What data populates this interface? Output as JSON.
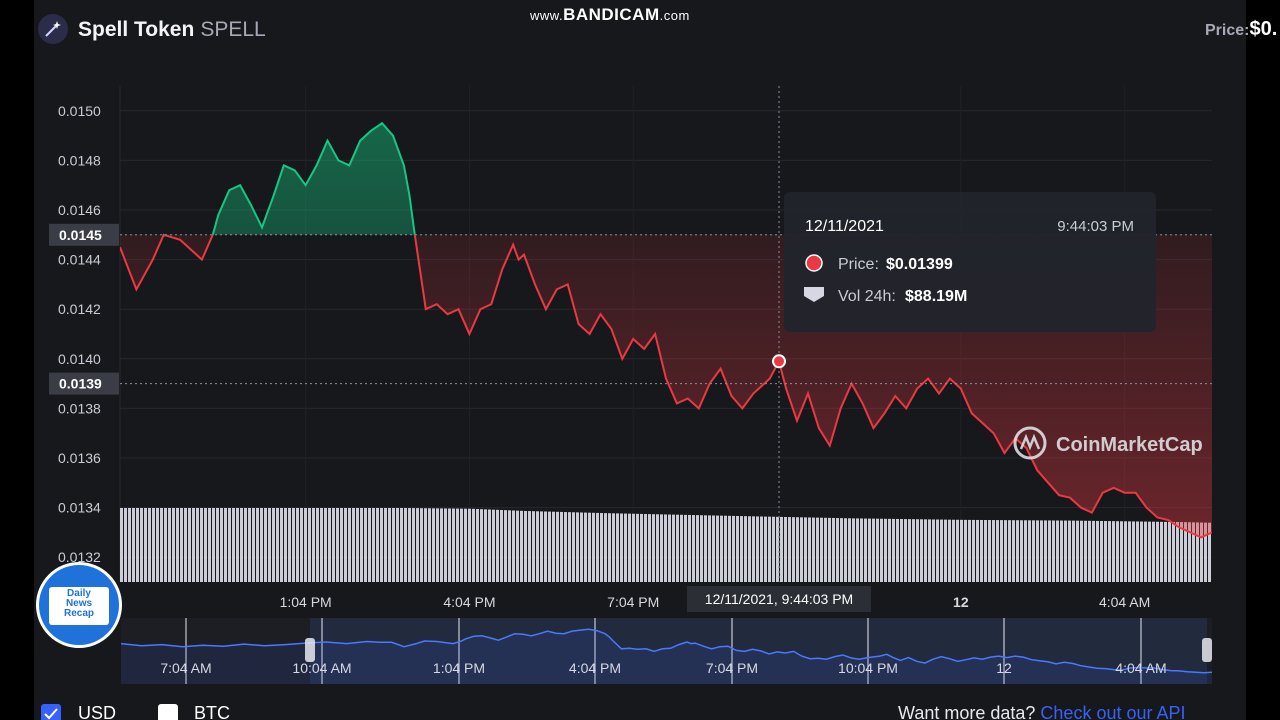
{
  "header": {
    "name": "Spell Token",
    "symbol": "SPELL",
    "price_label": "Price:",
    "price_value": "$0."
  },
  "watermark": {
    "prefix": "www.",
    "main": "BANDICAM",
    "suffix": ".com"
  },
  "tooltip": {
    "date": "12/11/2021",
    "time": "9:44:03 PM",
    "price_label": "Price:",
    "price_value": "$0.01399",
    "vol_label": "Vol 24h:",
    "vol_value": "$88.19M",
    "price_dot_color": "#ea3943"
  },
  "crosshair_x_label": "12/11/2021, 9:44:03 PM",
  "brand_watermark": "CoinMarketCap",
  "badge": {
    "line1": "Daily",
    "line2": "News",
    "line3": "Recap"
  },
  "footer": {
    "usd_label": "USD",
    "btc_label": "BTC",
    "more_text": "Want more data?",
    "api_link": "Check out our API"
  },
  "colors": {
    "up": "#16c784",
    "down": "#ea3943",
    "accent": "#3861fb",
    "background": "#17181b"
  },
  "chart_data": {
    "type": "line",
    "baseline": 0.0145,
    "ylim": [
      0.0131,
      0.0151
    ],
    "y_ticks": [
      "0.0150",
      "0.0148",
      "0.0146",
      "0.0144",
      "0.0142",
      "0.0140",
      "0.0138",
      "0.0136",
      "0.0134",
      "0.0132"
    ],
    "y_markers": [
      "0.0145",
      "0.0139"
    ],
    "x_ticks": [
      "1:04 PM",
      "4:04 PM",
      "7:04 PM",
      "12",
      "4:04 AM"
    ],
    "x_tick_hours": [
      4,
      7,
      10,
      16,
      19
    ],
    "x_range_hours": [
      0.6,
      20.6
    ],
    "hover_hour": 12.67,
    "hover_value": 0.01399,
    "series": [
      {
        "x": [
          0.6,
          0.9,
          1.2,
          1.4,
          1.7,
          2.0,
          2.1,
          2.3,
          2.4,
          2.6,
          2.8,
          3.0,
          3.2,
          3.4,
          3.6,
          3.8,
          4.0,
          4.2,
          4.4,
          4.6,
          4.8,
          5.0,
          5.2,
          5.4,
          5.6,
          5.8,
          5.9,
          6.0,
          6.2,
          6.4,
          6.6,
          6.8,
          7.0,
          7.2,
          7.4,
          7.6,
          7.8,
          7.9,
          8.0,
          8.2,
          8.4,
          8.6,
          8.8,
          9.0,
          9.2,
          9.4,
          9.6,
          9.8,
          10.0,
          10.2,
          10.4,
          10.6,
          10.8,
          11.0,
          11.2,
          11.4,
          11.6,
          11.8,
          12.0,
          12.2,
          12.4,
          12.5,
          12.67,
          12.8,
          13.0,
          13.2,
          13.4,
          13.6,
          13.8,
          14.0,
          14.2,
          14.4,
          14.6,
          14.8,
          15.0,
          15.2,
          15.4,
          15.6,
          15.8,
          16.0,
          16.2,
          16.4,
          16.6,
          16.8,
          17.0,
          17.2,
          17.4,
          17.6,
          17.8,
          18.0,
          18.2,
          18.4,
          18.6,
          18.8,
          19.0,
          19.2,
          19.4,
          19.6,
          19.8,
          20.0,
          20.2,
          20.4,
          20.6
        ],
        "y": [
          0.01445,
          0.01428,
          0.0144,
          0.0145,
          0.01448,
          0.01442,
          0.0144,
          0.0145,
          0.01458,
          0.01468,
          0.0147,
          0.01462,
          0.01453,
          0.01465,
          0.01478,
          0.01476,
          0.0147,
          0.01478,
          0.01488,
          0.0148,
          0.01478,
          0.01488,
          0.01492,
          0.01495,
          0.0149,
          0.01478,
          0.01466,
          0.0145,
          0.0142,
          0.01422,
          0.01418,
          0.0142,
          0.0141,
          0.0142,
          0.01422,
          0.01436,
          0.01446,
          0.0144,
          0.01442,
          0.0143,
          0.0142,
          0.01428,
          0.0143,
          0.01414,
          0.0141,
          0.01418,
          0.01412,
          0.014,
          0.01408,
          0.01404,
          0.0141,
          0.01392,
          0.01382,
          0.01384,
          0.0138,
          0.0139,
          0.01396,
          0.01385,
          0.0138,
          0.01386,
          0.0139,
          0.01392,
          0.01399,
          0.01388,
          0.01375,
          0.01386,
          0.01372,
          0.01365,
          0.0138,
          0.0139,
          0.01382,
          0.01372,
          0.01378,
          0.01385,
          0.0138,
          0.01388,
          0.01392,
          0.01386,
          0.01392,
          0.01388,
          0.01378,
          0.01374,
          0.0137,
          0.01362,
          0.01368,
          0.01364,
          0.01355,
          0.0135,
          0.01345,
          0.01344,
          0.0134,
          0.01338,
          0.01346,
          0.01348,
          0.01346,
          0.01346,
          0.0134,
          0.01336,
          0.01335,
          0.01332,
          0.0133,
          0.01328,
          0.0133
        ]
      }
    ],
    "volume": {
      "x": [
        0.6,
        5.8,
        7.0,
        8.0,
        9.5,
        12.0,
        14.0,
        16.0,
        18.0,
        20.0,
        20.6
      ],
      "y": [
        100,
        100,
        99,
        96,
        93,
        89,
        86,
        84,
        83,
        81,
        80
      ]
    },
    "navigator": {
      "x_ticks": [
        "7:04 AM",
        "10:04 AM",
        "1:04 PM",
        "4:04 PM",
        "7:04 PM",
        "10:04 PM",
        "12",
        "4:04 AM"
      ]
    }
  }
}
